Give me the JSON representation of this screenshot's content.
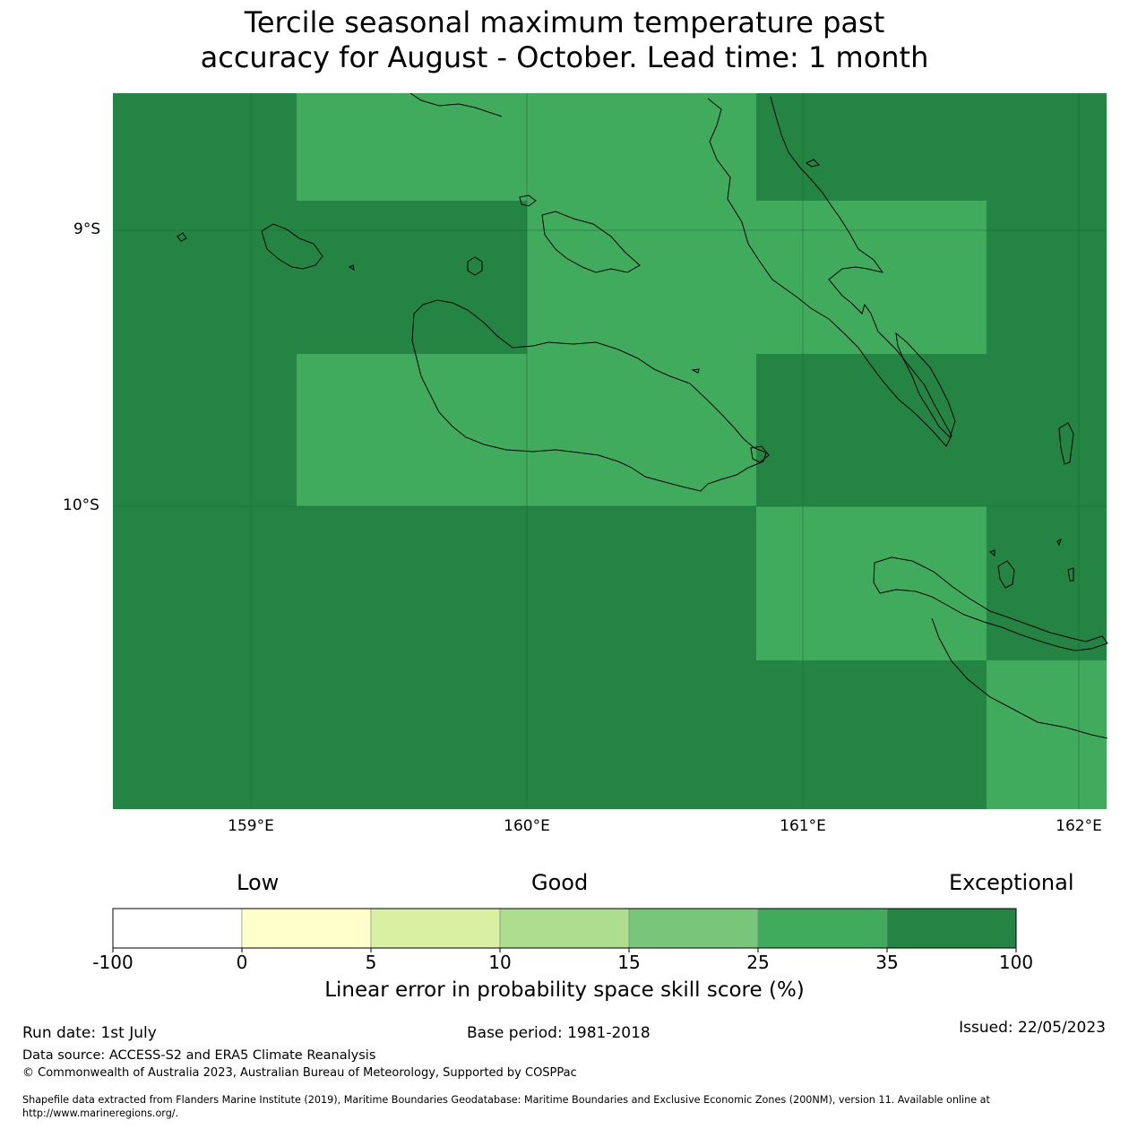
{
  "title": {
    "line1": "Tercile seasonal maximum temperature past",
    "line2": "accuracy for August - October. Lead time: 1 month"
  },
  "map": {
    "lat_labels": [
      "9°S",
      "10°S"
    ],
    "lon_labels": [
      "159°E",
      "160°E",
      "161°E",
      "162°E"
    ],
    "colors": {
      "exceptional": "#238443",
      "good_high": "#41ab5d"
    },
    "grid_classes": [
      [
        "exceptional",
        "good_high",
        "good_high",
        "exceptional",
        "exceptional"
      ],
      [
        "exceptional",
        "exceptional",
        "good_high",
        "good_high",
        "exceptional"
      ],
      [
        "exceptional",
        "good_high",
        "good_high",
        "exceptional",
        "exceptional"
      ],
      [
        "exceptional",
        "exceptional",
        "exceptional",
        "good_high",
        "exceptional"
      ],
      [
        "exceptional",
        "exceptional",
        "exceptional",
        "exceptional",
        "good_high"
      ]
    ]
  },
  "colorbar": {
    "category_labels": [
      "Low",
      "Good",
      "Exceptional"
    ],
    "tick_labels": [
      "-100",
      "0",
      "5",
      "10",
      "15",
      "25",
      "35",
      "100"
    ],
    "colors": [
      "#ffffff",
      "#ffffcc",
      "#d9f0a3",
      "#addd8e",
      "#78c679",
      "#41ab5d",
      "#238443"
    ],
    "title": "Linear error in probability space skill score (%)"
  },
  "footer": {
    "run_date": "Run date: 1st July",
    "base_period": "Base period: 1981-2018",
    "issued": "Issued: 22/05/2023",
    "data_source": "Data source: ACCESS-S2 and ERA5 Climate Reanalysis",
    "copyright": "© Commonwealth of Australia 2023, Australian Bureau of Meteorology, Supported by COSPPac",
    "shapefile_line1": "Shapefile data extracted from Flanders Marine Institute (2019), Maritime Boundaries Geodatabase: Maritime Boundaries and Exclusive Economic Zones (200NM), version 11. Available online at",
    "shapefile_line2": "http://www.marineregions.org/."
  }
}
